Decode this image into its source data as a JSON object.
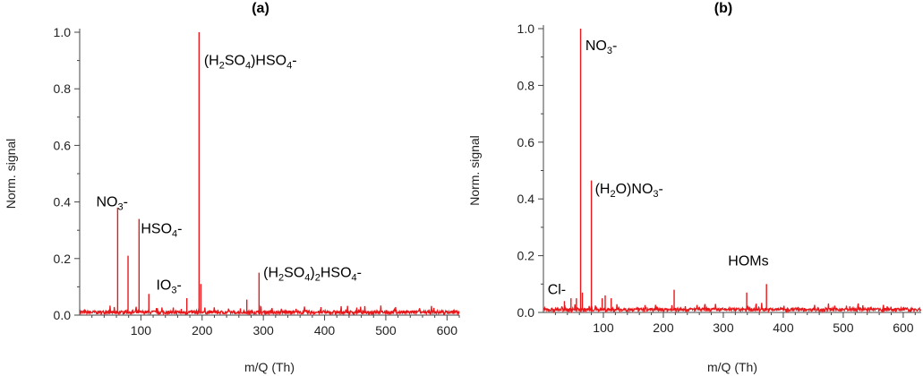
{
  "chart_data": [
    {
      "type": "line",
      "title": "(a)",
      "xlabel": "m/Q (Th)",
      "ylabel": "Norm. signal",
      "xlim": [
        0,
        620
      ],
      "ylim": [
        0,
        1.0
      ],
      "xticks": [
        "100",
        "200",
        "300",
        "400",
        "500",
        "600"
      ],
      "yticks": [
        "0.0",
        "0.2",
        "0.4",
        "0.6",
        "0.8",
        "1.0"
      ],
      "grid": false,
      "baseline": 0.01,
      "color": "#e8191c",
      "peaks": [
        {
          "x": 62,
          "y": 0.38
        },
        {
          "x": 79,
          "y": 0.21
        },
        {
          "x": 97,
          "y": 0.34
        },
        {
          "x": 113,
          "y": 0.075
        },
        {
          "x": 175,
          "y": 0.06
        },
        {
          "x": 195,
          "y": 1.0
        },
        {
          "x": 198,
          "y": 0.11
        },
        {
          "x": 273,
          "y": 0.055
        },
        {
          "x": 293,
          "y": 0.15
        }
      ],
      "annotations": [
        {
          "id": "nitrate",
          "parts": [
            [
              "t",
              "NO"
            ],
            [
              "s",
              "3"
            ],
            [
              "t",
              "-"
            ]
          ],
          "x": 27,
          "y": 0.385
        },
        {
          "id": "bisulfate",
          "parts": [
            [
              "t",
              "HSO"
            ],
            [
              "s",
              "4"
            ],
            [
              "t",
              "-"
            ]
          ],
          "x": 100,
          "y": 0.29
        },
        {
          "id": "iodate",
          "parts": [
            [
              "t",
              "IO"
            ],
            [
              "s",
              "3"
            ],
            [
              "t",
              "-"
            ]
          ],
          "x": 125,
          "y": 0.09
        },
        {
          "id": "sulfuric-dimer",
          "parts": [
            [
              "t",
              "(H"
            ],
            [
              "s",
              "2"
            ],
            [
              "t",
              "SO"
            ],
            [
              "s",
              "4"
            ],
            [
              "t",
              ")HSO"
            ],
            [
              "s",
              "4"
            ],
            [
              "t",
              "-"
            ]
          ],
          "x": 203,
          "y": 0.885
        },
        {
          "id": "sulfuric-trimer",
          "parts": [
            [
              "t",
              "(H"
            ],
            [
              "s",
              "2"
            ],
            [
              "t",
              "SO"
            ],
            [
              "s",
              "4"
            ],
            [
              "t",
              ")"
            ],
            [
              "s",
              "2"
            ],
            [
              "t",
              "HSO"
            ],
            [
              "s",
              "4"
            ],
            [
              "t",
              "-"
            ]
          ],
          "x": 300,
          "y": 0.135
        }
      ]
    },
    {
      "type": "line",
      "title": "(b)",
      "xlabel": "m/Q (Th)",
      "ylabel": "Norm. signal",
      "xlim": [
        0,
        630
      ],
      "ylim": [
        0,
        1.0
      ],
      "xticks": [
        "100",
        "200",
        "300",
        "400",
        "500",
        "600"
      ],
      "yticks": [
        "0.0",
        "0.2",
        "0.4",
        "0.6",
        "0.8",
        "1.0"
      ],
      "grid": false,
      "baseline": 0.01,
      "color": "#e8191c",
      "peaks": [
        {
          "x": 35,
          "y": 0.04
        },
        {
          "x": 46,
          "y": 0.05
        },
        {
          "x": 55,
          "y": 0.05
        },
        {
          "x": 62,
          "y": 1.0
        },
        {
          "x": 65,
          "y": 0.07
        },
        {
          "x": 80,
          "y": 0.465
        },
        {
          "x": 98,
          "y": 0.05
        },
        {
          "x": 103,
          "y": 0.06
        },
        {
          "x": 113,
          "y": 0.05
        },
        {
          "x": 218,
          "y": 0.08
        },
        {
          "x": 339,
          "y": 0.07
        },
        {
          "x": 355,
          "y": 0.03
        },
        {
          "x": 372,
          "y": 0.1
        }
      ],
      "annotations": [
        {
          "id": "chloride",
          "parts": [
            [
              "t",
              "Cl-"
            ]
          ],
          "x": 7,
          "y": 0.065
        },
        {
          "id": "nitrate",
          "parts": [
            [
              "t",
              "NO"
            ],
            [
              "s",
              "3"
            ],
            [
              "t",
              "-"
            ]
          ],
          "x": 70,
          "y": 0.925
        },
        {
          "id": "hydrated-nitrate",
          "parts": [
            [
              "t",
              "(H"
            ],
            [
              "s",
              "2"
            ],
            [
              "t",
              "O)NO"
            ],
            [
              "s",
              "3"
            ],
            [
              "t",
              "-"
            ]
          ],
          "x": 86,
          "y": 0.42
        },
        {
          "id": "homs",
          "parts": [
            [
              "t",
              "HOMs"
            ]
          ],
          "x": 308,
          "y": 0.165
        }
      ]
    }
  ]
}
